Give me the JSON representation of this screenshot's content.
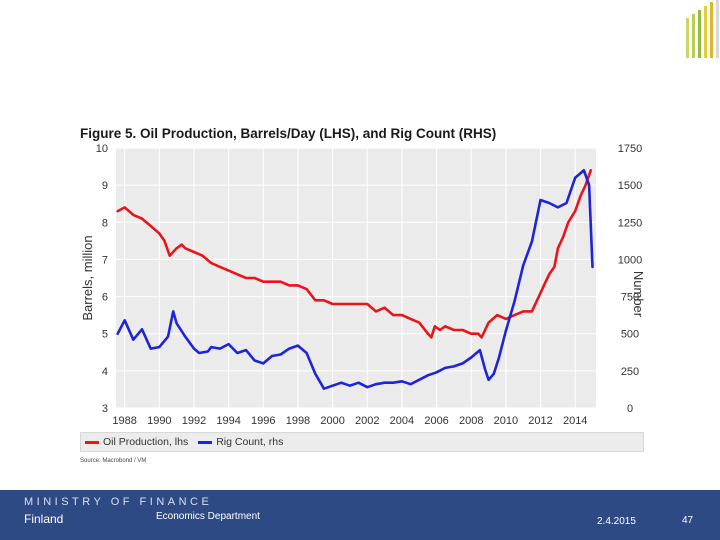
{
  "slide": {
    "page_number": "47",
    "date": "2.4.2015"
  },
  "footer": {
    "ministry": "MINISTRY OF FINANCE",
    "country": "Finland",
    "department": "Economics Department",
    "background_color": "#2d4a85"
  },
  "logo_colors": [
    "#c9d66a",
    "#b7cf52",
    "#8fbf3e",
    "#e7cc3a",
    "#e2b32e",
    "#d9d9d9"
  ],
  "chart_data": {
    "type": "line",
    "title": "Figure 5. Oil Production, Barrels/Day (LHS), and Rig Count (RHS)",
    "ylabel_left": "Barrels, million",
    "ylabel_right": "Number",
    "xlabel": "",
    "x_range": [
      1987.5,
      2015.2
    ],
    "ylim_left": [
      3,
      10
    ],
    "ylim_right": [
      0,
      1750
    ],
    "x_ticks": [
      "1988",
      "1990",
      "1992",
      "1994",
      "1996",
      "1998",
      "2000",
      "2002",
      "2004",
      "2006",
      "2008",
      "2010",
      "2012",
      "2014"
    ],
    "y_ticks_left": [
      "10",
      "9",
      "8",
      "7",
      "6",
      "5",
      "4",
      "3"
    ],
    "y_ticks_right": [
      "1750",
      "1500",
      "1250",
      "1000",
      "750",
      "500",
      "250",
      "0"
    ],
    "grid": true,
    "plot_background": "#ebebeb",
    "legend_position": "bottom",
    "source": "Source: Macrobond / VM",
    "series": [
      {
        "name": "Oil Production, lhs",
        "axis": "left",
        "color": "#e8151b",
        "x": [
          1987.6,
          1988.0,
          1988.5,
          1989.0,
          1989.5,
          1990.0,
          1990.3,
          1990.6,
          1991.0,
          1991.3,
          1991.5,
          1992.0,
          1992.5,
          1993.0,
          1993.5,
          1994.0,
          1994.5,
          1995.0,
          1995.5,
          1996.0,
          1996.5,
          1997.0,
          1997.5,
          1998.0,
          1998.5,
          1999.0,
          1999.5,
          2000.0,
          2000.5,
          2001.0,
          2001.5,
          2002.0,
          2002.5,
          2003.0,
          2003.5,
          2004.0,
          2004.5,
          2005.0,
          2005.5,
          2005.7,
          2005.9,
          2006.2,
          2006.5,
          2007.0,
          2007.5,
          2008.0,
          2008.4,
          2008.6,
          2008.8,
          2009.0,
          2009.5,
          2010.0,
          2010.5,
          2011.0,
          2011.5,
          2012.0,
          2012.3,
          2012.5,
          2012.8,
          2013.0,
          2013.3,
          2013.6,
          2014.0,
          2014.3,
          2014.6,
          2014.9
        ],
        "values": [
          8.3,
          8.4,
          8.2,
          8.1,
          7.9,
          7.7,
          7.5,
          7.1,
          7.3,
          7.4,
          7.3,
          7.2,
          7.1,
          6.9,
          6.8,
          6.7,
          6.6,
          6.5,
          6.5,
          6.4,
          6.4,
          6.4,
          6.3,
          6.3,
          6.2,
          5.9,
          5.9,
          5.8,
          5.8,
          5.8,
          5.8,
          5.8,
          5.6,
          5.7,
          5.5,
          5.5,
          5.4,
          5.3,
          5.0,
          4.9,
          5.2,
          5.1,
          5.2,
          5.1,
          5.1,
          5.0,
          5.0,
          4.9,
          5.1,
          5.3,
          5.5,
          5.4,
          5.5,
          5.6,
          5.6,
          6.1,
          6.4,
          6.6,
          6.8,
          7.3,
          7.6,
          8.0,
          8.3,
          8.7,
          9.0,
          9.4
        ]
      },
      {
        "name": "Rig Count, rhs",
        "axis": "right",
        "color": "#1f24d6",
        "x": [
          1987.6,
          1988.0,
          1988.5,
          1989.0,
          1989.5,
          1990.0,
          1990.5,
          1990.8,
          1991.0,
          1991.5,
          1992.0,
          1992.3,
          1992.8,
          1993.0,
          1993.5,
          1994.0,
          1994.5,
          1995.0,
          1995.5,
          1996.0,
          1996.5,
          1997.0,
          1997.5,
          1998.0,
          1998.5,
          1999.0,
          1999.3,
          1999.5,
          2000.0,
          2000.5,
          2001.0,
          2001.5,
          2002.0,
          2002.5,
          2003.0,
          2003.5,
          2004.0,
          2004.5,
          2005.0,
          2005.5,
          2006.0,
          2006.5,
          2007.0,
          2007.5,
          2008.0,
          2008.5,
          2008.8,
          2009.0,
          2009.3,
          2009.6,
          2010.0,
          2010.5,
          2011.0,
          2011.5,
          2012.0,
          2012.5,
          2013.0,
          2013.5,
          2014.0,
          2014.5,
          2014.8,
          2015.0
        ],
        "values": [
          500,
          590,
          460,
          530,
          400,
          410,
          480,
          650,
          570,
          480,
          400,
          370,
          380,
          410,
          400,
          430,
          370,
          390,
          320,
          300,
          350,
          360,
          400,
          420,
          370,
          230,
          170,
          130,
          150,
          170,
          150,
          170,
          140,
          160,
          170,
          170,
          180,
          160,
          190,
          220,
          240,
          270,
          280,
          300,
          340,
          390,
          260,
          190,
          230,
          340,
          520,
          720,
          960,
          1120,
          1400,
          1380,
          1350,
          1380,
          1550,
          1600,
          1500,
          950
        ]
      }
    ]
  }
}
